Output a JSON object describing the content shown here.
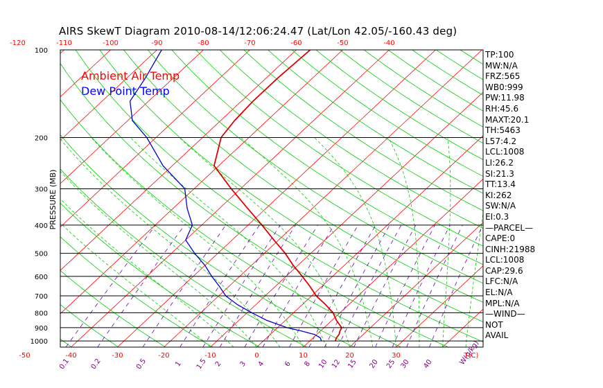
{
  "title": "AIRS SkewT Diagram 2010-08-14/12:06:24.47 (Lat/Lon 42.05/-160.43 deg)",
  "chart_data": {
    "type": "line",
    "title": "AIRS SkewT Diagram 2010-08-14/12:06:24.47 (Lat/Lon 42.05/-160.43 deg)",
    "ylabel": "PRESSURE (MB)",
    "xlabel": "T(C)",
    "mixing_ratio_label": "W(g/kg)",
    "pressure_range": [
      1050,
      100
    ],
    "pressure_ticks": [
      100,
      200,
      300,
      400,
      500,
      600,
      700,
      800,
      900,
      1000
    ],
    "pressure_tick_labels": [
      "100",
      "200",
      "300",
      "400",
      "500",
      "600",
      "700",
      "800",
      "900",
      "1000"
    ],
    "top_axis_ticks": [
      -120,
      -110,
      -100,
      -90,
      -80,
      -70,
      -60,
      -50,
      -40
    ],
    "top_axis_labels": [
      "-120",
      "-110",
      "-100",
      "-90",
      "-80",
      "-70",
      "-60",
      "-50",
      "-40"
    ],
    "bottom_axis_ticks": [
      -50,
      -40,
      -30,
      -20,
      -10,
      0,
      10,
      20,
      30
    ],
    "bottom_axis_labels": [
      "-50",
      "-40",
      "-30",
      "-20",
      "-10",
      "0",
      "10",
      "20",
      "30"
    ],
    "mixing_ratio_values": [
      0.1,
      0.2,
      0.5,
      1,
      1.5,
      2,
      3,
      4,
      6,
      8,
      10,
      12,
      15,
      20,
      25,
      30,
      40
    ],
    "mixing_ratio_labels": [
      "0.1",
      "0.2",
      "0.5",
      "1",
      "1.5",
      "2",
      "3",
      "4",
      "6",
      "8",
      "10",
      "12",
      "15",
      "20",
      "25",
      "30",
      "40"
    ],
    "isotherms_C": [
      -120,
      -110,
      -100,
      -90,
      -80,
      -70,
      -60,
      -50,
      -40,
      -30,
      -20,
      -10,
      0,
      10,
      20,
      30,
      40
    ],
    "dry_adiabats_theta_K": [
      250,
      260,
      270,
      280,
      290,
      300,
      310,
      320,
      330,
      340,
      350,
      360,
      370,
      380,
      390,
      400,
      410,
      420,
      430,
      440,
      450,
      460,
      470,
      480,
      490
    ],
    "moist_adiabats_start_C": [
      -10,
      -5,
      0,
      5,
      10,
      15,
      20,
      25,
      30,
      35
    ],
    "legend": [
      {
        "name": "Ambient Air Temp",
        "color": "#ff0000"
      },
      {
        "name": "Dew Point Temp",
        "color": "#0000ff"
      }
    ],
    "series": [
      {
        "name": "Ambient Air Temp",
        "color": "#dd0000",
        "pressure": [
          1000,
          975,
          950,
          925,
          900,
          850,
          800,
          750,
          700,
          650,
          600,
          550,
          500,
          450,
          400,
          350,
          300,
          250,
          200,
          175,
          150,
          125,
          100
        ],
        "temperature": [
          15.5,
          15.0,
          14.8,
          14.2,
          13.8,
          11.0,
          8.5,
          5.0,
          1.0,
          -2.5,
          -6.5,
          -11.0,
          -15.5,
          -21.0,
          -27.0,
          -34.0,
          -42.0,
          -51.0,
          -56.0,
          -57.0,
          -57.5,
          -57.5,
          -57.0
        ]
      },
      {
        "name": "Dew Point Temp",
        "color": "#0000cc",
        "pressure": [
          1000,
          975,
          950,
          925,
          900,
          850,
          800,
          750,
          700,
          650,
          600,
          550,
          500,
          450,
          400,
          350,
          300,
          250,
          200,
          175,
          150,
          125,
          100
        ],
        "temperature": [
          12.5,
          11.5,
          9.5,
          6.0,
          2.0,
          -4.0,
          -9.0,
          -14.0,
          -18.5,
          -22.0,
          -26.0,
          -30.0,
          -35.0,
          -40.0,
          -42.0,
          -47.0,
          -52.0,
          -62.0,
          -72.0,
          -79.0,
          -84.0,
          -86.0,
          -89.0
        ]
      }
    ]
  },
  "stats": [
    "TP:100",
    "MW:N/A",
    "FRZ:565",
    "WB0:999",
    "PW:11.98",
    "RH:45.6",
    "MAXT:20.1",
    "TH:5463",
    "L57:4.2",
    "LCL:1008",
    "LI:26.2",
    "SI:21.3",
    "TT:13.4",
    "KI:262",
    "SW:N/A",
    "EI:0.3",
    "—PARCEL—",
    "CAPE:0",
    "CINH:21988",
    "LCL:1008",
    "CAP:29.6",
    "LFC:N/A",
    "EL:N/A",
    "MPL:N/A",
    "—WIND—",
    "NOT",
    "AVAIL"
  ],
  "colors": {
    "isotherm": "#ff0000",
    "dry_adiabat": "#00cc00",
    "moist_adiabat": "#00cc00",
    "mixing_ratio": "#7000b0",
    "pressure_line": "#000000",
    "air_temp": "#dd0000",
    "dew_point": "#0000cc"
  }
}
